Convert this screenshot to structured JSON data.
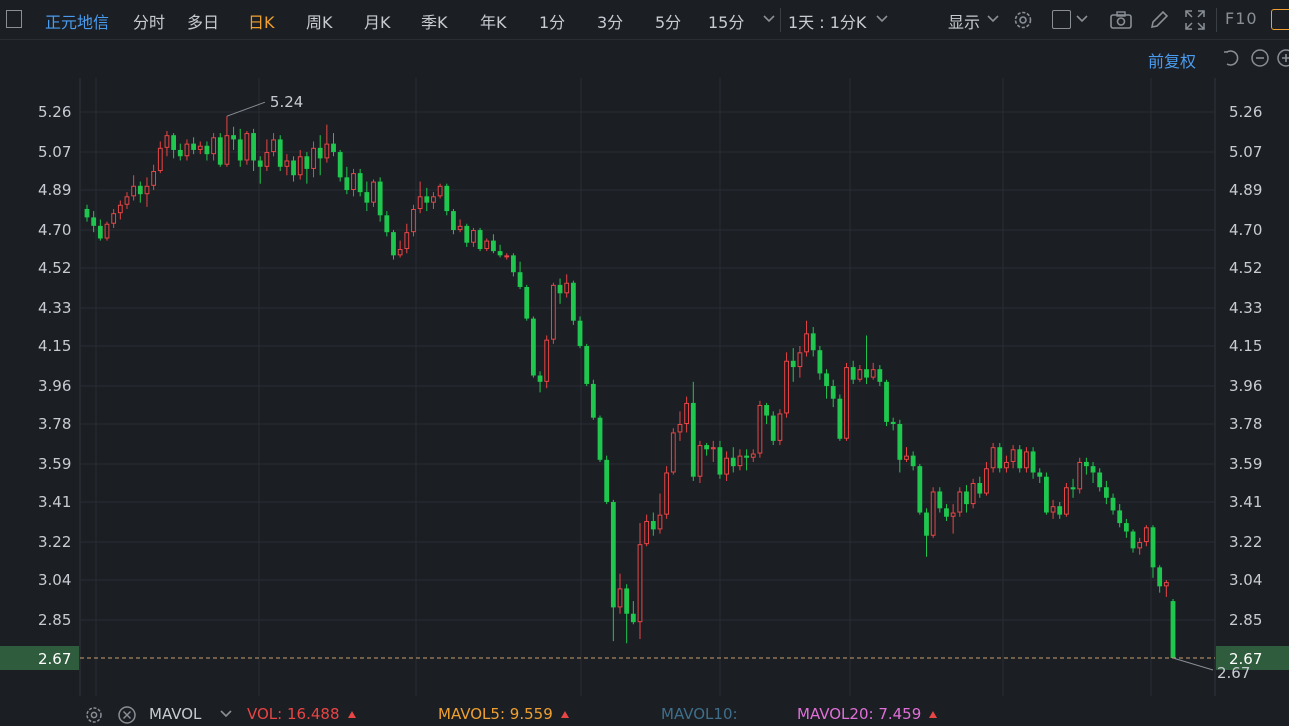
{
  "toolbar": {
    "stock_name": "正元地信",
    "periods": [
      "分时",
      "多日",
      "日K",
      "周K",
      "月K",
      "季K",
      "年K",
      "1分",
      "3分",
      "5分",
      "15分"
    ],
    "active_period": "日K",
    "interval_label": "1天 : 1分K",
    "display_label": "显示",
    "f10_label": "F10"
  },
  "adjust_label": "前复权",
  "colors": {
    "up": "#e84545",
    "down": "#1fc74f",
    "background": "#1b1e23",
    "grid": "#2a2e35",
    "price_tag": "#2e5c3c"
  },
  "chart_data": {
    "type": "candlestick",
    "ylim": [
      2.62,
      5.43
    ],
    "y_ticks": [
      5.26,
      5.07,
      4.89,
      4.7,
      4.52,
      4.33,
      4.15,
      3.96,
      3.78,
      3.59,
      3.41,
      3.22,
      3.04,
      2.85
    ],
    "last_price": "2.67",
    "annotations": [
      {
        "text": "5.24"
      },
      {
        "text": "2.67"
      }
    ],
    "candles": [
      [
        4.8,
        4.76,
        4.82,
        4.74
      ],
      [
        4.76,
        4.72,
        4.79,
        4.69
      ],
      [
        4.72,
        4.66,
        4.75,
        4.65
      ],
      [
        4.66,
        4.73,
        4.74,
        4.65
      ],
      [
        4.73,
        4.78,
        4.8,
        4.71
      ],
      [
        4.78,
        4.82,
        4.84,
        4.75
      ],
      [
        4.82,
        4.86,
        4.88,
        4.8
      ],
      [
        4.86,
        4.91,
        4.96,
        4.84
      ],
      [
        4.91,
        4.87,
        4.93,
        4.83
      ],
      [
        4.87,
        4.91,
        4.95,
        4.81
      ],
      [
        4.91,
        4.98,
        5.01,
        4.89
      ],
      [
        4.98,
        5.09,
        5.12,
        4.97
      ],
      [
        5.09,
        5.15,
        5.17,
        5.05
      ],
      [
        5.15,
        5.08,
        5.16,
        5.04
      ],
      [
        5.08,
        5.05,
        5.11,
        5.03
      ],
      [
        5.05,
        5.11,
        5.13,
        5.03
      ],
      [
        5.11,
        5.08,
        5.14,
        5.06
      ],
      [
        5.08,
        5.1,
        5.12,
        5.06
      ],
      [
        5.1,
        5.06,
        5.12,
        5.03
      ],
      [
        5.06,
        5.14,
        5.16,
        5.03
      ],
      [
        5.14,
        5.01,
        5.16,
        5.0
      ],
      [
        5.01,
        5.15,
        5.24,
        5.0
      ],
      [
        5.15,
        5.13,
        5.19,
        5.08
      ],
      [
        5.13,
        5.03,
        5.18,
        5.0
      ],
      [
        5.03,
        5.16,
        5.17,
        5.01
      ],
      [
        5.16,
        5.03,
        5.18,
        4.98
      ],
      [
        5.03,
        5.0,
        5.05,
        4.92
      ],
      [
        5.0,
        5.07,
        5.13,
        4.98
      ],
      [
        5.07,
        5.13,
        5.16,
        5.05
      ],
      [
        5.13,
        5.0,
        5.15,
        4.98
      ],
      [
        5.0,
        5.03,
        5.06,
        4.96
      ],
      [
        5.03,
        4.96,
        5.05,
        4.93
      ],
      [
        4.96,
        5.05,
        5.08,
        4.94
      ],
      [
        5.05,
        4.99,
        5.07,
        4.92
      ],
      [
        4.99,
        5.09,
        5.12,
        4.95
      ],
      [
        5.09,
        5.04,
        5.15,
        4.96
      ],
      [
        5.04,
        5.11,
        5.2,
        5.02
      ],
      [
        5.11,
        5.07,
        5.16,
        5.05
      ],
      [
        5.07,
        4.95,
        5.08,
        4.93
      ],
      [
        4.95,
        4.89,
        5.0,
        4.87
      ],
      [
        4.89,
        4.97,
        4.99,
        4.86
      ],
      [
        4.97,
        4.88,
        4.99,
        4.86
      ],
      [
        4.88,
        4.83,
        4.93,
        4.79
      ],
      [
        4.83,
        4.93,
        4.94,
        4.81
      ],
      [
        4.93,
        4.77,
        4.95,
        4.74
      ],
      [
        4.77,
        4.69,
        4.79,
        4.67
      ],
      [
        4.69,
        4.58,
        4.7,
        4.56
      ],
      [
        4.58,
        4.61,
        4.65,
        4.57
      ],
      [
        4.61,
        4.69,
        4.73,
        4.59
      ],
      [
        4.69,
        4.8,
        4.82,
        4.67
      ],
      [
        4.8,
        4.86,
        4.93,
        4.78
      ],
      [
        4.86,
        4.83,
        4.9,
        4.79
      ],
      [
        4.83,
        4.86,
        4.88,
        4.8
      ],
      [
        4.86,
        4.91,
        4.92,
        4.85
      ],
      [
        4.91,
        4.79,
        4.92,
        4.77
      ],
      [
        4.79,
        4.7,
        4.8,
        4.68
      ],
      [
        4.7,
        4.72,
        4.75,
        4.69
      ],
      [
        4.72,
        4.64,
        4.73,
        4.62
      ],
      [
        4.64,
        4.7,
        4.71,
        4.62
      ],
      [
        4.7,
        4.61,
        4.71,
        4.6
      ],
      [
        4.61,
        4.65,
        4.66,
        4.6
      ],
      [
        4.65,
        4.6,
        4.68,
        4.59
      ],
      [
        4.6,
        4.58,
        4.63,
        4.57
      ],
      [
        4.58,
        4.58,
        4.59,
        4.56
      ],
      [
        4.58,
        4.5,
        4.59,
        4.48
      ],
      [
        4.5,
        4.43,
        4.55,
        4.42
      ],
      [
        4.43,
        4.28,
        4.44,
        4.27
      ],
      [
        4.28,
        4.01,
        4.29,
        4.0
      ],
      [
        4.01,
        3.98,
        4.03,
        3.93
      ],
      [
        3.98,
        4.18,
        4.2,
        3.95
      ],
      [
        4.18,
        4.44,
        4.45,
        4.16
      ],
      [
        4.44,
        4.4,
        4.47,
        4.35
      ],
      [
        4.4,
        4.45,
        4.49,
        4.38
      ],
      [
        4.45,
        4.27,
        4.46,
        4.25
      ],
      [
        4.27,
        4.15,
        4.29,
        4.14
      ],
      [
        4.15,
        3.97,
        4.16,
        3.96
      ],
      [
        3.97,
        3.81,
        3.99,
        3.8
      ],
      [
        3.81,
        3.61,
        3.82,
        3.6
      ],
      [
        3.61,
        3.41,
        3.63,
        3.4
      ],
      [
        3.41,
        2.91,
        3.42,
        2.75
      ],
      [
        2.91,
        3.0,
        3.07,
        2.88
      ],
      [
        3.0,
        2.88,
        3.02,
        2.74
      ],
      [
        2.88,
        2.84,
        2.94,
        2.83
      ],
      [
        2.84,
        3.21,
        3.31,
        2.76
      ],
      [
        3.21,
        3.32,
        3.35,
        3.2
      ],
      [
        3.32,
        3.28,
        3.36,
        3.25
      ],
      [
        3.28,
        3.35,
        3.45,
        3.26
      ],
      [
        3.35,
        3.55,
        3.58,
        3.33
      ],
      [
        3.55,
        3.74,
        3.76,
        3.54
      ],
      [
        3.74,
        3.78,
        3.84,
        3.7
      ],
      [
        3.78,
        3.88,
        3.91,
        3.74
      ],
      [
        3.88,
        3.53,
        3.98,
        3.51
      ],
      [
        3.53,
        3.68,
        3.7,
        3.5
      ],
      [
        3.68,
        3.66,
        3.69,
        3.63
      ],
      [
        3.66,
        3.67,
        3.7,
        3.6
      ],
      [
        3.67,
        3.54,
        3.7,
        3.52
      ],
      [
        3.54,
        3.62,
        3.65,
        3.51
      ],
      [
        3.62,
        3.58,
        3.67,
        3.55
      ],
      [
        3.58,
        3.63,
        3.66,
        3.56
      ],
      [
        3.63,
        3.62,
        3.66,
        3.56
      ],
      [
        3.62,
        3.64,
        3.66,
        3.6
      ],
      [
        3.64,
        3.87,
        3.89,
        3.62
      ],
      [
        3.87,
        3.82,
        3.88,
        3.78
      ],
      [
        3.82,
        3.7,
        3.84,
        3.68
      ],
      [
        3.7,
        3.83,
        3.85,
        3.68
      ],
      [
        3.83,
        4.08,
        4.12,
        3.81
      ],
      [
        4.08,
        4.05,
        4.14,
        3.98
      ],
      [
        4.05,
        4.12,
        4.15,
        4.0
      ],
      [
        4.12,
        4.21,
        4.27,
        4.1
      ],
      [
        4.21,
        4.13,
        4.24,
        4.1
      ],
      [
        4.13,
        4.02,
        4.15,
        3.99
      ],
      [
        4.02,
        3.96,
        4.04,
        3.9
      ],
      [
        3.96,
        3.9,
        3.99,
        3.86
      ],
      [
        3.9,
        3.71,
        3.92,
        3.7
      ],
      [
        3.71,
        4.05,
        4.07,
        3.7
      ],
      [
        4.05,
        3.99,
        4.08,
        3.97
      ],
      [
        3.99,
        4.04,
        4.06,
        3.98
      ],
      [
        4.04,
        4.0,
        4.2,
        3.97
      ],
      [
        4.0,
        4.04,
        4.07,
        3.99
      ],
      [
        4.04,
        3.98,
        4.06,
        3.96
      ],
      [
        3.98,
        3.79,
        3.99,
        3.77
      ],
      [
        3.79,
        3.78,
        3.81,
        3.75
      ],
      [
        3.78,
        3.61,
        3.8,
        3.55
      ],
      [
        3.61,
        3.63,
        3.67,
        3.6
      ],
      [
        3.63,
        3.58,
        3.65,
        3.56
      ],
      [
        3.58,
        3.36,
        3.59,
        3.35
      ],
      [
        3.36,
        3.25,
        3.38,
        3.15
      ],
      [
        3.25,
        3.46,
        3.48,
        3.24
      ],
      [
        3.46,
        3.38,
        3.48,
        3.36
      ],
      [
        3.38,
        3.34,
        3.4,
        3.32
      ],
      [
        3.34,
        3.36,
        3.4,
        3.26
      ],
      [
        3.36,
        3.46,
        3.48,
        3.34
      ],
      [
        3.46,
        3.4,
        3.49,
        3.36
      ],
      [
        3.4,
        3.5,
        3.52,
        3.38
      ],
      [
        3.5,
        3.45,
        3.53,
        3.43
      ],
      [
        3.45,
        3.57,
        3.6,
        3.44
      ],
      [
        3.57,
        3.67,
        3.69,
        3.55
      ],
      [
        3.67,
        3.57,
        3.69,
        3.55
      ],
      [
        3.57,
        3.6,
        3.63,
        3.55
      ],
      [
        3.6,
        3.66,
        3.68,
        3.57
      ],
      [
        3.66,
        3.57,
        3.68,
        3.55
      ],
      [
        3.57,
        3.65,
        3.67,
        3.55
      ],
      [
        3.65,
        3.55,
        3.67,
        3.52
      ],
      [
        3.55,
        3.53,
        3.57,
        3.5
      ],
      [
        3.53,
        3.36,
        3.55,
        3.35
      ],
      [
        3.36,
        3.39,
        3.42,
        3.33
      ],
      [
        3.39,
        3.35,
        3.41,
        3.33
      ],
      [
        3.35,
        3.48,
        3.5,
        3.34
      ],
      [
        3.48,
        3.47,
        3.52,
        3.43
      ],
      [
        3.47,
        3.6,
        3.62,
        3.45
      ],
      [
        3.6,
        3.58,
        3.62,
        3.54
      ],
      [
        3.58,
        3.55,
        3.6,
        3.5
      ],
      [
        3.55,
        3.48,
        3.57,
        3.46
      ],
      [
        3.48,
        3.43,
        3.51,
        3.4
      ],
      [
        3.43,
        3.37,
        3.45,
        3.35
      ],
      [
        3.37,
        3.31,
        3.4,
        3.29
      ],
      [
        3.31,
        3.27,
        3.33,
        3.24
      ],
      [
        3.27,
        3.19,
        3.28,
        3.17
      ],
      [
        3.19,
        3.22,
        3.24,
        3.16
      ],
      [
        3.22,
        3.29,
        3.3,
        3.2
      ],
      [
        3.29,
        3.1,
        3.3,
        3.05
      ],
      [
        3.1,
        3.01,
        3.11,
        2.98
      ],
      [
        3.01,
        3.03,
        3.04,
        2.96
      ],
      [
        2.94,
        2.67,
        2.95,
        2.67
      ]
    ]
  },
  "footer": {
    "mavol_label": "MAVOL",
    "vol_label": "VOL:",
    "vol_value": "16.488",
    "mavol5_label": "MAVOL5:",
    "mavol5_value": "9.559",
    "mavol10_label": "MAVOL10:",
    "mavol20_label": "MAVOL20:",
    "mavol20_value": "7.459"
  }
}
